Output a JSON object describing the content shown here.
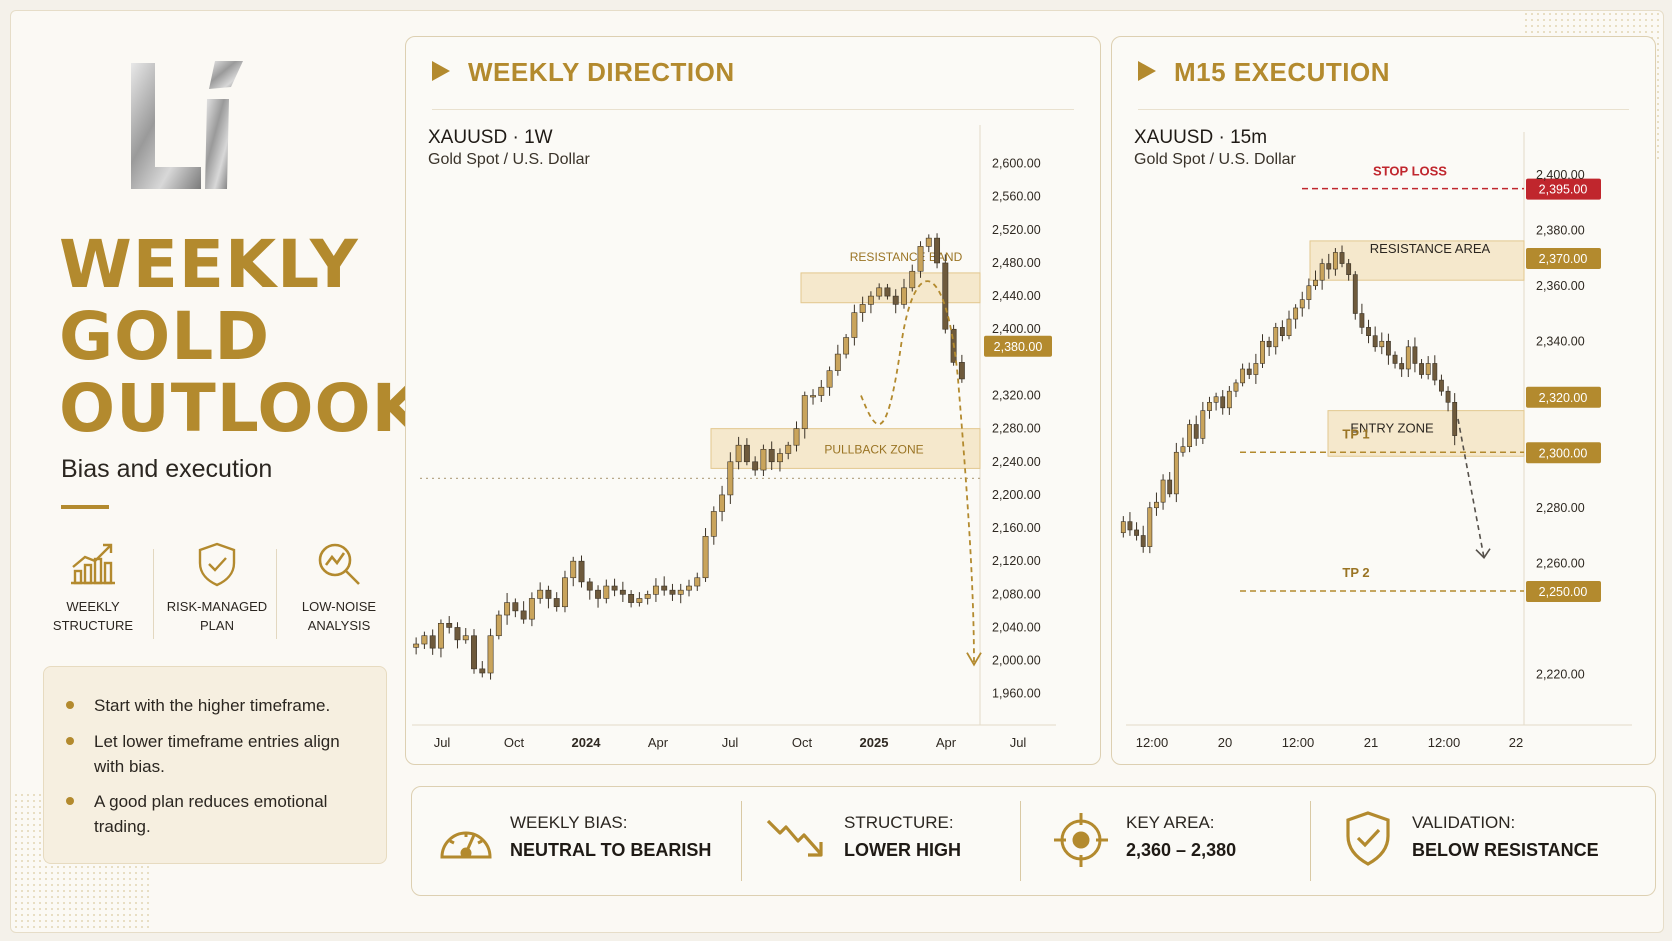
{
  "colors": {
    "gold": "#b38a2e",
    "gold_light": "#f3e2bd",
    "bull": "#c9a45c",
    "bear": "#6e5a3c",
    "stop_red": "#c0262d",
    "text": "#2b2620"
  },
  "logo": {
    "text": "Li"
  },
  "hero": {
    "title_lines": [
      "WEEKLY",
      "GOLD",
      "OUTLOOK"
    ],
    "subtitle": "Bias and execution"
  },
  "features": [
    {
      "icon": "bar-chart-icon",
      "label": "WEEKLY\nSTRUCTURE"
    },
    {
      "icon": "shield-check-icon",
      "label": "RISK-MANAGED\nPLAN"
    },
    {
      "icon": "magnifier-trend-icon",
      "label": "LOW-NOISE\nANALYSIS"
    }
  ],
  "notes": [
    "Start with the higher timeframe.",
    "Let lower timeframe entries align with bias.",
    "A good plan reduces emotional trading."
  ],
  "weekly_panel": {
    "title": "WEEKLY DIRECTION",
    "symbol": "XAUUSD · 1W",
    "instrument": "Gold Spot / U.S. Dollar"
  },
  "m15_panel": {
    "title": "M15 EXECUTION",
    "symbol": "XAUUSD · 15m",
    "instrument": "Gold Spot / U.S. Dollar"
  },
  "bottom_stats": [
    {
      "icon": "gauge-icon",
      "label": "WEEKLY BIAS:",
      "value": "NEUTRAL TO BEARISH"
    },
    {
      "icon": "down-trend-arrow-icon",
      "label": "STRUCTURE:",
      "value": "LOWER HIGH"
    },
    {
      "icon": "target-icon",
      "label": "KEY AREA:",
      "value": "2,360 – 2,380"
    },
    {
      "icon": "shield-check-icon",
      "label": "VALIDATION:",
      "value": "BELOW RESISTANCE"
    }
  ],
  "chart_data": [
    {
      "type": "candlestick",
      "title": "WEEKLY DIRECTION",
      "symbol": "XAUUSD · 1W",
      "x_ticks": [
        "Jul",
        "Oct",
        "2024",
        "Apr",
        "Jul",
        "Oct",
        "2025",
        "Apr",
        "Jul"
      ],
      "y_ticks": [
        "2,600.00",
        "2,560.00",
        "2,520.00",
        "2,480.00",
        "2,440.00",
        "2,400.00",
        "2,380.00",
        "2,320.00",
        "2,280.00",
        "2,240.00",
        "2,200.00",
        "2,160.00",
        "2,120.00",
        "2,080.00",
        "2,040.00",
        "2,000.00",
        "1,960.00"
      ],
      "y_tick_values": [
        2600,
        2560,
        2520,
        2480,
        2440,
        2400,
        2380,
        2320,
        2280,
        2240,
        2200,
        2160,
        2120,
        2080,
        2040,
        2000,
        1960
      ],
      "ylim": [
        1950,
        2620
      ],
      "price_label": {
        "value": 2380,
        "text": "2,380.00"
      },
      "zones": [
        {
          "label": "RESISTANCE BAND",
          "from": 2432,
          "to": 2468
        },
        {
          "label": "PULLBACK ZONE",
          "from": 2232,
          "to": 2280
        }
      ],
      "dotted_level": 2220,
      "projection": [
        2320,
        2275,
        2380,
        2460,
        2340,
        1995
      ],
      "closes": [
        2020,
        2030,
        2015,
        2045,
        2040,
        2025,
        2030,
        1990,
        1985,
        2030,
        2055,
        2070,
        2060,
        2050,
        2075,
        2085,
        2075,
        2065,
        2100,
        2120,
        2095,
        2085,
        2075,
        2090,
        2085,
        2080,
        2070,
        2075,
        2080,
        2090,
        2085,
        2080,
        2085,
        2090,
        2100,
        2150,
        2180,
        2200,
        2240,
        2260,
        2240,
        2230,
        2255,
        2240,
        2250,
        2260,
        2280,
        2320,
        2320,
        2330,
        2350,
        2370,
        2390,
        2420,
        2430,
        2440,
        2450,
        2440,
        2430,
        2450,
        2470,
        2500,
        2510,
        2480,
        2400,
        2360,
        2340
      ]
    },
    {
      "type": "candlestick",
      "title": "M15 EXECUTION",
      "symbol": "XAUUSD · 15m",
      "x_ticks": [
        "12:00",
        "20",
        "12:00",
        "21",
        "12:00",
        "22"
      ],
      "y_ticks": [
        "2,400.00",
        "2,380.00",
        "2,360.00",
        "2,340.00",
        "2,280.00",
        "2,260.00",
        "2,220.00"
      ],
      "y_tick_values": [
        2400,
        2380,
        2360,
        2340,
        2280,
        2260,
        2220
      ],
      "ylim": [
        2210,
        2410
      ],
      "zones": [
        {
          "label": "RESISTANCE AREA",
          "from": 2362,
          "to": 2374
        },
        {
          "label": "ENTRY ZONE",
          "from": 2300,
          "to": 2315
        }
      ],
      "levels": [
        {
          "label": "STOP LOSS",
          "value": 2395,
          "text": "2,395.00"
        },
        {
          "label": "",
          "value": 2370,
          "text": "2,370.00"
        },
        {
          "label": "",
          "value": 2320,
          "text": "2,320.00"
        },
        {
          "label": "TP 1",
          "value": 2300,
          "text": "2,300.00"
        },
        {
          "label": "TP 2",
          "value": 2250,
          "text": "2,250.00"
        }
      ],
      "closes": [
        2275,
        2272,
        2270,
        2266,
        2280,
        2282,
        2290,
        2285,
        2300,
        2302,
        2310,
        2305,
        2315,
        2318,
        2320,
        2316,
        2322,
        2325,
        2330,
        2328,
        2332,
        2340,
        2338,
        2345,
        2342,
        2348,
        2352,
        2355,
        2360,
        2362,
        2368,
        2366,
        2372,
        2368,
        2364,
        2350,
        2345,
        2342,
        2338,
        2340,
        2335,
        2332,
        2330,
        2338,
        2332,
        2328,
        2332,
        2326,
        2322,
        2318,
        2306
      ]
    }
  ]
}
